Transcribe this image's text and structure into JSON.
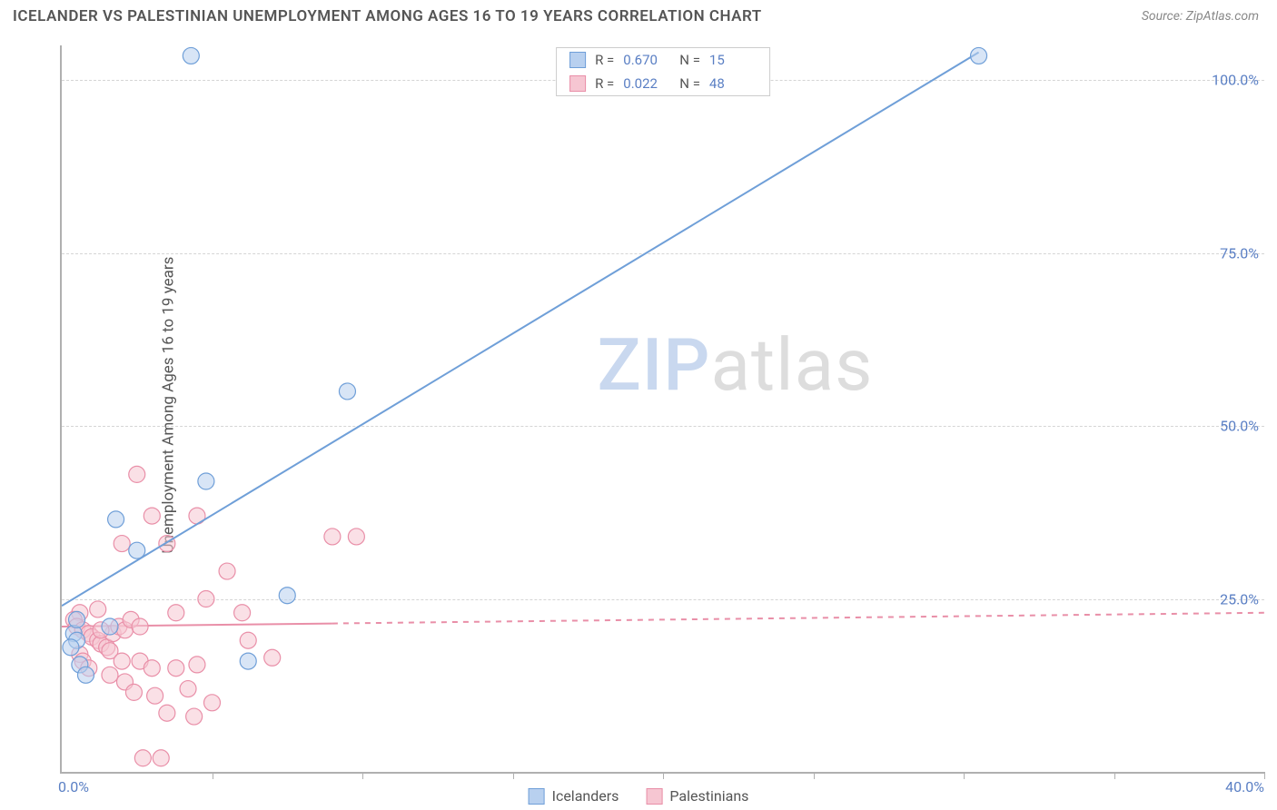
{
  "title": "ICELANDER VS PALESTINIAN UNEMPLOYMENT AMONG AGES 16 TO 19 YEARS CORRELATION CHART",
  "source": "Source: ZipAtlas.com",
  "y_axis_label": "Unemployment Among Ages 16 to 19 years",
  "watermark": {
    "part1": "ZIP",
    "part2": "atlas"
  },
  "chart": {
    "type": "scatter",
    "background_color": "#ffffff",
    "grid_color": "#d5d5d5",
    "axis_color": "#b0b0b0",
    "tick_label_color": "#5a7fc4",
    "xlim": [
      0,
      40
    ],
    "ylim": [
      0,
      105
    ],
    "x_ticks_major": [
      0,
      5,
      10,
      15,
      20,
      25,
      30,
      35,
      40
    ],
    "x_tick_labels": {
      "0": "0.0%",
      "40": "40.0%"
    },
    "y_ticks": [
      25,
      50,
      75,
      100
    ],
    "y_tick_labels": [
      "25.0%",
      "50.0%",
      "75.0%",
      "100.0%"
    ],
    "marker_radius": 9,
    "marker_opacity": 0.55,
    "line_width": 2,
    "series": [
      {
        "name": "Icelanders",
        "color_fill": "#b8d0ef",
        "color_stroke": "#6f9fd8",
        "R": "0.670",
        "N": "15",
        "line": {
          "x1": 0,
          "y1": 24,
          "x2": 30.5,
          "y2": 104,
          "dash": "none"
        },
        "points": [
          [
            4.3,
            103.5
          ],
          [
            30.5,
            103.5
          ],
          [
            9.5,
            55
          ],
          [
            4.8,
            42
          ],
          [
            1.8,
            36.5
          ],
          [
            2.5,
            32
          ],
          [
            7.5,
            25.5
          ],
          [
            6.2,
            16
          ],
          [
            0.6,
            15.5
          ],
          [
            1.6,
            21
          ],
          [
            0.4,
            20
          ],
          [
            0.5,
            19
          ],
          [
            0.8,
            14
          ],
          [
            0.5,
            22
          ],
          [
            0.3,
            18
          ]
        ]
      },
      {
        "name": "Palestinians",
        "color_fill": "#f6c6d2",
        "color_stroke": "#e98fa8",
        "R": "0.022",
        "N": "48",
        "line": {
          "x1": 0,
          "y1": 21,
          "x2": 40,
          "y2": 23,
          "dash_from": 9
        },
        "points": [
          [
            2.5,
            43
          ],
          [
            3.0,
            37
          ],
          [
            3.5,
            33
          ],
          [
            2.0,
            33
          ],
          [
            4.5,
            37
          ],
          [
            9.0,
            34
          ],
          [
            9.8,
            34
          ],
          [
            5.5,
            29
          ],
          [
            4.8,
            25
          ],
          [
            6.0,
            23
          ],
          [
            3.8,
            23
          ],
          [
            1.2,
            23.5
          ],
          [
            0.6,
            23
          ],
          [
            0.4,
            22
          ],
          [
            0.5,
            21
          ],
          [
            0.7,
            20.5
          ],
          [
            0.9,
            20
          ],
          [
            1.0,
            19.5
          ],
          [
            1.2,
            19
          ],
          [
            1.3,
            18.5
          ],
          [
            1.5,
            18
          ],
          [
            1.7,
            20
          ],
          [
            1.9,
            21
          ],
          [
            2.1,
            20.5
          ],
          [
            2.3,
            22
          ],
          [
            2.6,
            21
          ],
          [
            0.6,
            17
          ],
          [
            0.7,
            16
          ],
          [
            0.9,
            15
          ],
          [
            1.3,
            20.5
          ],
          [
            1.6,
            17.5
          ],
          [
            1.6,
            14
          ],
          [
            2.1,
            13
          ],
          [
            2.0,
            16
          ],
          [
            2.4,
            11.5
          ],
          [
            2.6,
            16
          ],
          [
            3.0,
            15
          ],
          [
            3.1,
            11
          ],
          [
            3.5,
            8.5
          ],
          [
            3.8,
            15
          ],
          [
            4.2,
            12
          ],
          [
            4.4,
            8
          ],
          [
            4.5,
            15.5
          ],
          [
            5.0,
            10
          ],
          [
            2.7,
            2
          ],
          [
            3.3,
            2
          ],
          [
            7.0,
            16.5
          ],
          [
            6.2,
            19
          ]
        ]
      }
    ]
  },
  "legend_bottom": [
    "Icelanders",
    "Palestinians"
  ]
}
